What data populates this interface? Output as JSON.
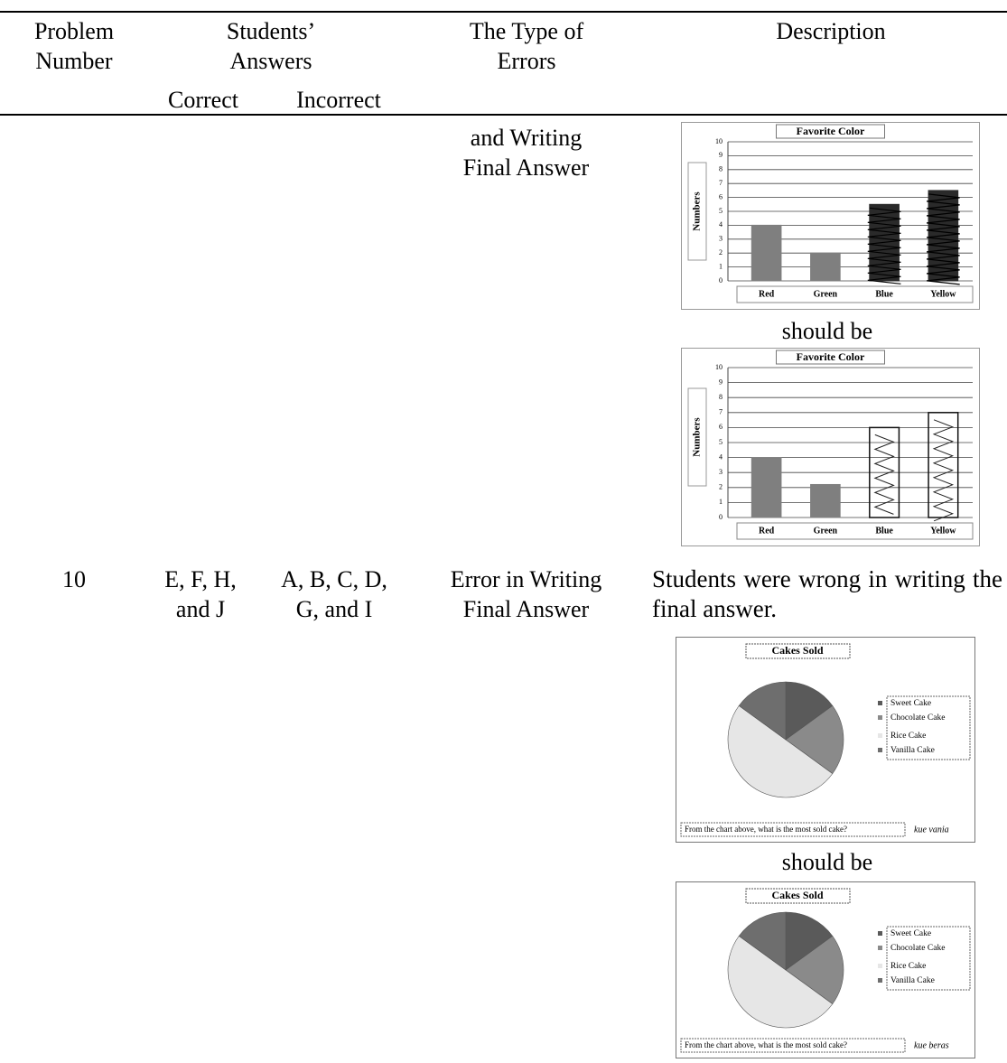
{
  "table": {
    "header": {
      "problem_number": "Problem Number",
      "students_answers": "Students’ Answers",
      "correct": "Correct",
      "incorrect": "Incorrect",
      "error_type": "The Type of Errors",
      "description": "Description"
    },
    "rows": [
      {
        "error_type": "and Writing Final Answer",
        "connector": "should be",
        "figures": [
          {
            "type": "bar",
            "title": "Favorite Color",
            "y_label": "Numbers",
            "categories": [
              "Red",
              "Green",
              "Blue",
              "Yellow"
            ],
            "values": [
              4,
              2,
              5.5,
              6.5
            ],
            "colors": [
              "#7f7f7f",
              "#7f7f7f",
              "#2a2a2a",
              "#2a2a2a"
            ],
            "ylim": [
              0,
              10
            ],
            "yticks": [
              0,
              1,
              2,
              3,
              4,
              5,
              6,
              7,
              8,
              9,
              10
            ]
          },
          {
            "type": "bar",
            "title": "Favorite Color",
            "y_label": "Numbers",
            "categories": [
              "Red",
              "Green",
              "Blue",
              "Yellow"
            ],
            "values": [
              4,
              2.2,
              6,
              7
            ],
            "colors": [
              "#7f7f7f",
              "#7f7f7f",
              "none",
              "none"
            ],
            "ylim": [
              0,
              10
            ],
            "yticks": [
              0,
              1,
              2,
              3,
              4,
              5,
              6,
              7,
              8,
              9,
              10
            ]
          }
        ]
      },
      {
        "problem_number": "10",
        "correct": "E, F, H, and J",
        "incorrect": "A, B, C, D, G, and I",
        "error_type": "Error in Writing Final Answer",
        "description": "Students were wrong in writing the final answer.",
        "connector": "should be",
        "figures": [
          {
            "type": "pie",
            "title": "Cakes Sold",
            "labels": [
              "Sweet Cake",
              "Chocolate Cake",
              "Rice Cake",
              "Vanilla Cake"
            ],
            "values": [
              15,
              20,
              50,
              15
            ],
            "colors": [
              "#5a5a5a",
              "#8a8a8a",
              "#e6e6e6",
              "#6e6e6e"
            ],
            "question": "From the chart above, what is the most sold cake?",
            "answer": "kue vania"
          },
          {
            "type": "pie",
            "title": "Cakes Sold",
            "labels": [
              "Sweet Cake",
              "Chocolate Cake",
              "Rice Cake",
              "Vanilla Cake"
            ],
            "values": [
              15,
              20,
              50,
              15
            ],
            "colors": [
              "#5a5a5a",
              "#8a8a8a",
              "#e6e6e6",
              "#6e6e6e"
            ],
            "question": "From the chart above, what is the most sold cake?",
            "answer": "kue beras"
          }
        ]
      }
    ]
  }
}
